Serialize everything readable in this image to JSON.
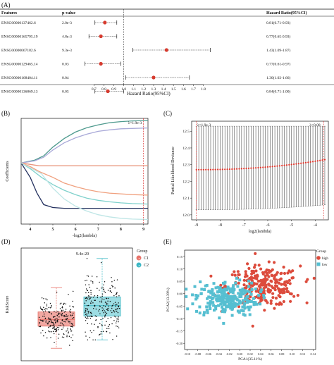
{
  "chart_data": [
    {
      "panel": "(A)",
      "type": "forest",
      "headers": {
        "features": "Features",
        "pvalue": "p-value",
        "hr": "Hazard Ratio(95%CI)"
      },
      "xlabel": "Hazard Ratio(95%CI)",
      "xticks": [
        "0.7",
        "0.8",
        "0.9",
        "1.0",
        "1.1",
        "1.2",
        "1.3",
        "1.4",
        "1.5",
        "1.6",
        "1.7",
        "1.8"
      ],
      "xlim": [
        0.62,
        1.86
      ],
      "reference_line": 1.0,
      "rows": [
        {
          "feature": "ENSG00000137462.6",
          "p": "2.0e-3",
          "hr": 0.81,
          "lo": 0.71,
          "hi": 0.93,
          "label": "0.81(0.71-0.93)"
        },
        {
          "feature": "ENSG00000165795.19",
          "p": "4.8e-3",
          "hr": 0.77,
          "lo": 0.65,
          "hi": 0.93,
          "label": "0.77(0.65-0.93)"
        },
        {
          "feature": "ENSG00000067182.6",
          "p": "9.3e-3",
          "hr": 1.43,
          "lo": 1.09,
          "hi": 1.87,
          "label": "1.43(1.09-1.87)"
        },
        {
          "feature": "ENSG00000129465.14",
          "p": "0.03",
          "hr": 0.77,
          "lo": 0.61,
          "hi": 0.97,
          "label": "0.77(0.61-0.97)"
        },
        {
          "feature": "ENSG00000168404.11",
          "p": "0.04",
          "hr": 1.3,
          "lo": 1.02,
          "hi": 1.66,
          "label": "1.30(1.02-1.66)"
        },
        {
          "feature": "ENSG00000136869.13",
          "p": "0.05",
          "hr": 0.84,
          "lo": 0.71,
          "hi": 1.0,
          "label": "0.84(0.71-1.00)"
        }
      ]
    },
    {
      "panel": "(B)",
      "type": "line",
      "ylabel": "Coefficients",
      "xlabel": "-log2(lambda)",
      "xticks": [
        "4",
        "5",
        "6",
        "7",
        "8",
        "9"
      ],
      "xlim": [
        3.6,
        9.2
      ],
      "ylim": [
        -0.85,
        0.62
      ],
      "vline": 9.0,
      "annotation": "λ=1.9e-3",
      "series": [
        {
          "color": "#4e9a8e",
          "x": [
            3.6,
            4.2,
            4.6,
            5.0,
            5.5,
            6.0,
            6.5,
            7.0,
            7.5,
            8.0,
            8.5,
            9.0,
            9.2
          ],
          "y": [
            0,
            0.04,
            0.1,
            0.22,
            0.34,
            0.43,
            0.49,
            0.53,
            0.56,
            0.575,
            0.585,
            0.59,
            0.592
          ]
        },
        {
          "color": "#a9a9d8",
          "x": [
            3.6,
            4.2,
            4.6,
            5.0,
            5.5,
            6.0,
            6.5,
            7.0,
            7.5,
            8.0,
            8.5,
            9.0,
            9.2
          ],
          "y": [
            0,
            0.03,
            0.08,
            0.18,
            0.28,
            0.35,
            0.4,
            0.44,
            0.46,
            0.475,
            0.48,
            0.485,
            0.487
          ]
        },
        {
          "color": "#e8967e",
          "x": [
            3.6,
            4.0,
            4.4,
            5.0,
            6.0,
            7.0,
            8.0,
            9.0,
            9.2
          ],
          "y": [
            0,
            -0.02,
            -0.04,
            -0.04,
            -0.04,
            -0.04,
            -0.04,
            -0.04,
            -0.04
          ]
        },
        {
          "color": "#f0a07e",
          "x": [
            3.6,
            4.0,
            4.4,
            5.0,
            5.5,
            6.0,
            6.5,
            7.0,
            7.5,
            8.0,
            8.5,
            9.0,
            9.2
          ],
          "y": [
            0,
            -0.05,
            -0.12,
            -0.2,
            -0.28,
            -0.33,
            -0.37,
            -0.4,
            -0.42,
            -0.43,
            -0.44,
            -0.445,
            -0.447
          ]
        },
        {
          "color": "#7fd1cc",
          "x": [
            3.6,
            4.0,
            4.5,
            5.0,
            5.5,
            6.0,
            6.5,
            7.0,
            7.5,
            8.0,
            8.5,
            9.0,
            9.2
          ],
          "y": [
            0,
            -0.08,
            -0.2,
            -0.3,
            -0.38,
            -0.44,
            -0.49,
            -0.52,
            -0.54,
            -0.555,
            -0.565,
            -0.57,
            -0.572
          ]
        },
        {
          "color": "#23305e",
          "x": [
            3.6,
            4.0,
            4.3,
            4.6,
            5.0,
            5.5,
            6.0,
            7.0,
            8.0,
            9.0,
            9.2
          ],
          "y": [
            0,
            -0.2,
            -0.42,
            -0.58,
            -0.62,
            -0.63,
            -0.63,
            -0.63,
            -0.63,
            -0.63,
            -0.63
          ]
        },
        {
          "color": "#bfe6e6",
          "x": [
            3.6,
            4.5,
            5.0,
            5.5,
            6.0,
            6.5,
            7.0,
            7.5,
            8.0,
            8.5,
            9.0,
            9.2
          ],
          "y": [
            0,
            -0.15,
            -0.35,
            -0.5,
            -0.6,
            -0.67,
            -0.72,
            -0.75,
            -0.77,
            -0.78,
            -0.785,
            -0.787
          ]
        }
      ]
    },
    {
      "panel": "(C)",
      "type": "errorbar",
      "ylabel": "Partial Likelihood Deviance",
      "xlabel": "log2(lambda)",
      "xticks": [
        -9,
        -8,
        -7,
        -6,
        -5,
        -4
      ],
      "yticks": [
        12.0,
        12.1,
        12.2,
        12.3,
        12.4,
        12.5
      ],
      "xlim": [
        -9.2,
        -3.45
      ],
      "ylim": [
        11.97,
        12.56
      ],
      "vlines": [
        -9.0,
        -3.65
      ],
      "annotations": [
        "λ=1.9e-3",
        "λ=0.08"
      ],
      "mean_start": 12.27,
      "mean_end": 12.33,
      "lower_start": 12.03,
      "lower_end": 12.06,
      "upper": 12.53,
      "n_points": 55
    },
    {
      "panel": "(D)",
      "type": "box",
      "ylabel": "RiskScore",
      "pvalue": "9.4e-20",
      "legend_title": "Group",
      "groups": [
        {
          "name": "C1",
          "color": "#e8736a",
          "fill": "#f2a8a2",
          "min": 0.05,
          "q1": 0.58,
          "median": 0.74,
          "q3": 0.92,
          "max": 1.5
        },
        {
          "name": "C2",
          "color": "#3bb7c4",
          "fill": "#9ddde3",
          "min": 0.25,
          "q1": 0.82,
          "median": 1.07,
          "q3": 1.28,
          "max": 2.2
        }
      ],
      "ylim": [
        -0.25,
        2.45
      ]
    },
    {
      "panel": "(E)",
      "type": "scatter",
      "xlabel": "PCA1(35.11%)",
      "ylabel": "PCA2(13.39%)",
      "legend_title": "Group",
      "xticks": [
        -0.1,
        -0.08,
        -0.06,
        -0.04,
        -0.02,
        0.0,
        0.02,
        0.04,
        0.06,
        0.08,
        0.1,
        0.12,
        0.14
      ],
      "yticks": [
        0.15,
        0.1,
        0.05,
        0.0,
        -0.05,
        -0.1,
        -0.15,
        -0.2
      ],
      "xlim": [
        -0.105,
        0.145
      ],
      "ylim": [
        -0.225,
        0.175
      ],
      "series": [
        {
          "name": "high",
          "color": "#dc4b3c",
          "shape": "circle",
          "center": [
            0.045,
            0.03
          ],
          "spread": [
            0.035,
            0.04
          ],
          "n": 260
        },
        {
          "name": "low",
          "color": "#56bfd1",
          "shape": "square",
          "center": [
            -0.025,
            -0.02
          ],
          "spread": [
            0.03,
            0.035
          ],
          "n": 250
        }
      ]
    }
  ],
  "panel_labels": {
    "a": "(A)",
    "b": "(B)",
    "c": "(C)",
    "d": "(D)",
    "e": "(E)"
  },
  "group_labels": {
    "c1": "C1",
    "c2": "C2",
    "high": "high",
    "low": "low",
    "group_d": "Group",
    "group_e": "Group"
  }
}
